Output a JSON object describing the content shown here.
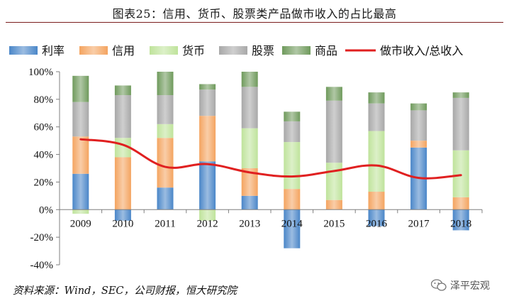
{
  "page": {
    "title": "图表25：信用、货币、股票类产品做市收入的占比最高",
    "source": "资料来源：Wind，SEC，公司财报，恒大研究院",
    "brand": "泽平宏观"
  },
  "chart_data": {
    "type": "bar",
    "stacked": true,
    "title": "图表25：信用、货币、股票类产品做市收入的占比最高",
    "categories": [
      "2009",
      "2010",
      "2011",
      "2012",
      "2013",
      "2014",
      "2015",
      "2016",
      "2017",
      "2018"
    ],
    "series": [
      {
        "name": "利率",
        "color": "#4a86c8",
        "values": [
          26,
          -8,
          16,
          35,
          10,
          -28,
          0,
          -12,
          45,
          -15
        ]
      },
      {
        "name": "信用",
        "color": "#f4a460",
        "values": [
          27,
          38,
          36,
          33,
          20,
          15,
          7,
          13,
          5,
          9
        ]
      },
      {
        "name": "货币",
        "color": "#bfe39b",
        "values": [
          -3,
          14,
          10,
          -8,
          29,
          34,
          27,
          44,
          0,
          34
        ]
      },
      {
        "name": "股票",
        "color": "#a8a8a8",
        "values": [
          25,
          31,
          21,
          19,
          30,
          15,
          45,
          20,
          22,
          38
        ]
      },
      {
        "name": "商品",
        "color": "#6f9a5c",
        "values": [
          19,
          7,
          17,
          4,
          11,
          7,
          10,
          8,
          5,
          4
        ]
      }
    ],
    "line": {
      "name": "做市收入/总收入",
      "color": "#e02020",
      "values": [
        51,
        47,
        31,
        33,
        27,
        24,
        28,
        32,
        23,
        25
      ]
    },
    "ylim": [
      -40,
      100
    ],
    "yticks": [
      -40,
      -20,
      0,
      20,
      40,
      60,
      80,
      100
    ],
    "ytick_labels": [
      "-40%",
      "-20%",
      "0%",
      "20%",
      "40%",
      "60%",
      "80%",
      "100%"
    ],
    "xlabel": "",
    "ylabel": "",
    "legend_position": "top"
  }
}
